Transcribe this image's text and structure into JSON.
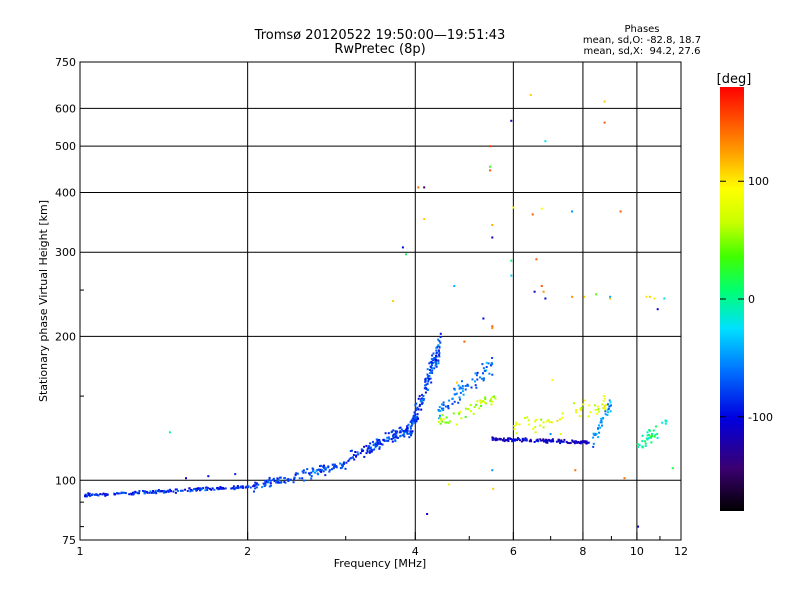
{
  "chart_data": {
    "type": "scatter",
    "title": "Tromsø 20120522 19:50:00—19:51:43",
    "subtitle": "RwPretec (8p)",
    "xlabel": "Frequency [MHz]",
    "ylabel": "Stationary phase Virtual Height [km]",
    "x_scale": "log",
    "y_scale": "log",
    "xlim": [
      1,
      12
    ],
    "ylim": [
      75,
      750
    ],
    "x_ticks": [
      1,
      2,
      4,
      6,
      8,
      10,
      12
    ],
    "x_tick_labels": [
      "1",
      "2",
      "4",
      "6",
      "8",
      "10",
      "12"
    ],
    "y_ticks": [
      75,
      100,
      200,
      300,
      400,
      500,
      600,
      750
    ],
    "y_tick_labels": [
      "75",
      "100",
      "200",
      "300",
      "400",
      "500",
      "600",
      "750"
    ],
    "grid": true,
    "phase_stats": {
      "heading": "Phases",
      "line_o": "mean, sd,O: -82.8, 18.7",
      "line_x": "mean, sd,X:  94.2, 27.6"
    },
    "colorbar": {
      "label": "[deg]",
      "range": [
        -180,
        180
      ],
      "ticks": [
        100,
        0,
        -100
      ],
      "tick_labels": [
        "100",
        "0",
        "-100"
      ]
    },
    "traces": [
      {
        "f0": 1.02,
        "f1": 2.05,
        "h0": 93,
        "h1": 97,
        "phase": -88,
        "jitter": 0.012,
        "n": 170
      },
      {
        "f0": 2.05,
        "f1": 3.0,
        "h0": 97,
        "h1": 108,
        "phase": -75,
        "jitter": 0.035,
        "n": 130
      },
      {
        "f0": 3.0,
        "f1": 3.9,
        "h0": 110,
        "h1": 128,
        "phase": -82,
        "jitter": 0.045,
        "n": 130
      },
      {
        "f0": 3.9,
        "f1": 4.45,
        "h0": 125,
        "h1": 195,
        "phase": -78,
        "jitter": 0.08,
        "n": 150
      },
      {
        "f0": 4.4,
        "f1": 5.5,
        "h0": 140,
        "h1": 175,
        "phase": -62,
        "jitter": 0.07,
        "n": 75
      },
      {
        "f0": 4.4,
        "f1": 5.6,
        "h0": 130,
        "h1": 150,
        "phase": 60,
        "jitter": 0.06,
        "n": 45
      },
      {
        "f0": 5.5,
        "f1": 8.2,
        "h0": 122,
        "h1": 120,
        "phase": -110,
        "jitter": 0.012,
        "n": 130
      },
      {
        "f0": 6.0,
        "f1": 9.0,
        "h0": 128,
        "h1": 145,
        "phase": 80,
        "jitter": 0.06,
        "n": 55
      },
      {
        "f0": 8.3,
        "f1": 9.0,
        "h0": 120,
        "h1": 145,
        "phase": -50,
        "jitter": 0.06,
        "n": 35
      },
      {
        "f0": 10.0,
        "f1": 11.5,
        "h0": 118,
        "h1": 135,
        "phase": 0,
        "jitter": 0.05,
        "n": 35
      }
    ],
    "points": [
      [
        1.45,
        126,
        -10
      ],
      [
        1.55,
        101,
        -110
      ],
      [
        1.7,
        102,
        -100
      ],
      [
        1.9,
        103,
        -90
      ],
      [
        3.65,
        237,
        110
      ],
      [
        3.8,
        307,
        -100
      ],
      [
        3.85,
        297,
        15
      ],
      [
        4.05,
        410,
        140
      ],
      [
        4.15,
        410,
        -150
      ],
      [
        4.15,
        352,
        110
      ],
      [
        4.2,
        85,
        -110
      ],
      [
        4.6,
        98,
        100
      ],
      [
        4.7,
        255,
        -40
      ],
      [
        4.75,
        160,
        110
      ],
      [
        4.9,
        195,
        150
      ],
      [
        5.3,
        218,
        -100
      ],
      [
        5.45,
        500,
        160
      ],
      [
        5.45,
        453,
        30
      ],
      [
        5.45,
        445,
        150
      ],
      [
        5.5,
        342,
        120
      ],
      [
        5.5,
        322,
        -110
      ],
      [
        5.5,
        208,
        130
      ],
      [
        5.5,
        210,
        150
      ],
      [
        5.5,
        105,
        -50
      ],
      [
        5.52,
        96,
        110
      ],
      [
        5.95,
        565,
        -110
      ],
      [
        5.95,
        288,
        10
      ],
      [
        5.95,
        268,
        -30
      ],
      [
        6.0,
        372,
        90
      ],
      [
        6.45,
        640,
        110
      ],
      [
        6.5,
        360,
        150
      ],
      [
        6.55,
        248,
        -110
      ],
      [
        6.6,
        290,
        150
      ],
      [
        6.75,
        370,
        90
      ],
      [
        6.75,
        255,
        150
      ],
      [
        6.8,
        248,
        130
      ],
      [
        6.85,
        512,
        -20
      ],
      [
        6.85,
        240,
        -100
      ],
      [
        7.0,
        125,
        -50
      ],
      [
        7.05,
        162,
        90
      ],
      [
        7.3,
        125,
        80
      ],
      [
        7.65,
        365,
        -50
      ],
      [
        7.65,
        242,
        130
      ],
      [
        7.75,
        105,
        140
      ],
      [
        8.05,
        242,
        110
      ],
      [
        8.45,
        245,
        40
      ],
      [
        8.75,
        620,
        110
      ],
      [
        8.75,
        560,
        150
      ],
      [
        8.95,
        240,
        110
      ],
      [
        8.95,
        242,
        -40
      ],
      [
        9.35,
        365,
        150
      ],
      [
        9.5,
        101,
        140
      ],
      [
        10.05,
        80,
        -110
      ],
      [
        10.4,
        242,
        100
      ],
      [
        10.55,
        242,
        110
      ],
      [
        10.75,
        240,
        100
      ],
      [
        10.9,
        228,
        -100
      ],
      [
        11.2,
        240,
        -20
      ],
      [
        11.6,
        106,
        20
      ]
    ]
  }
}
